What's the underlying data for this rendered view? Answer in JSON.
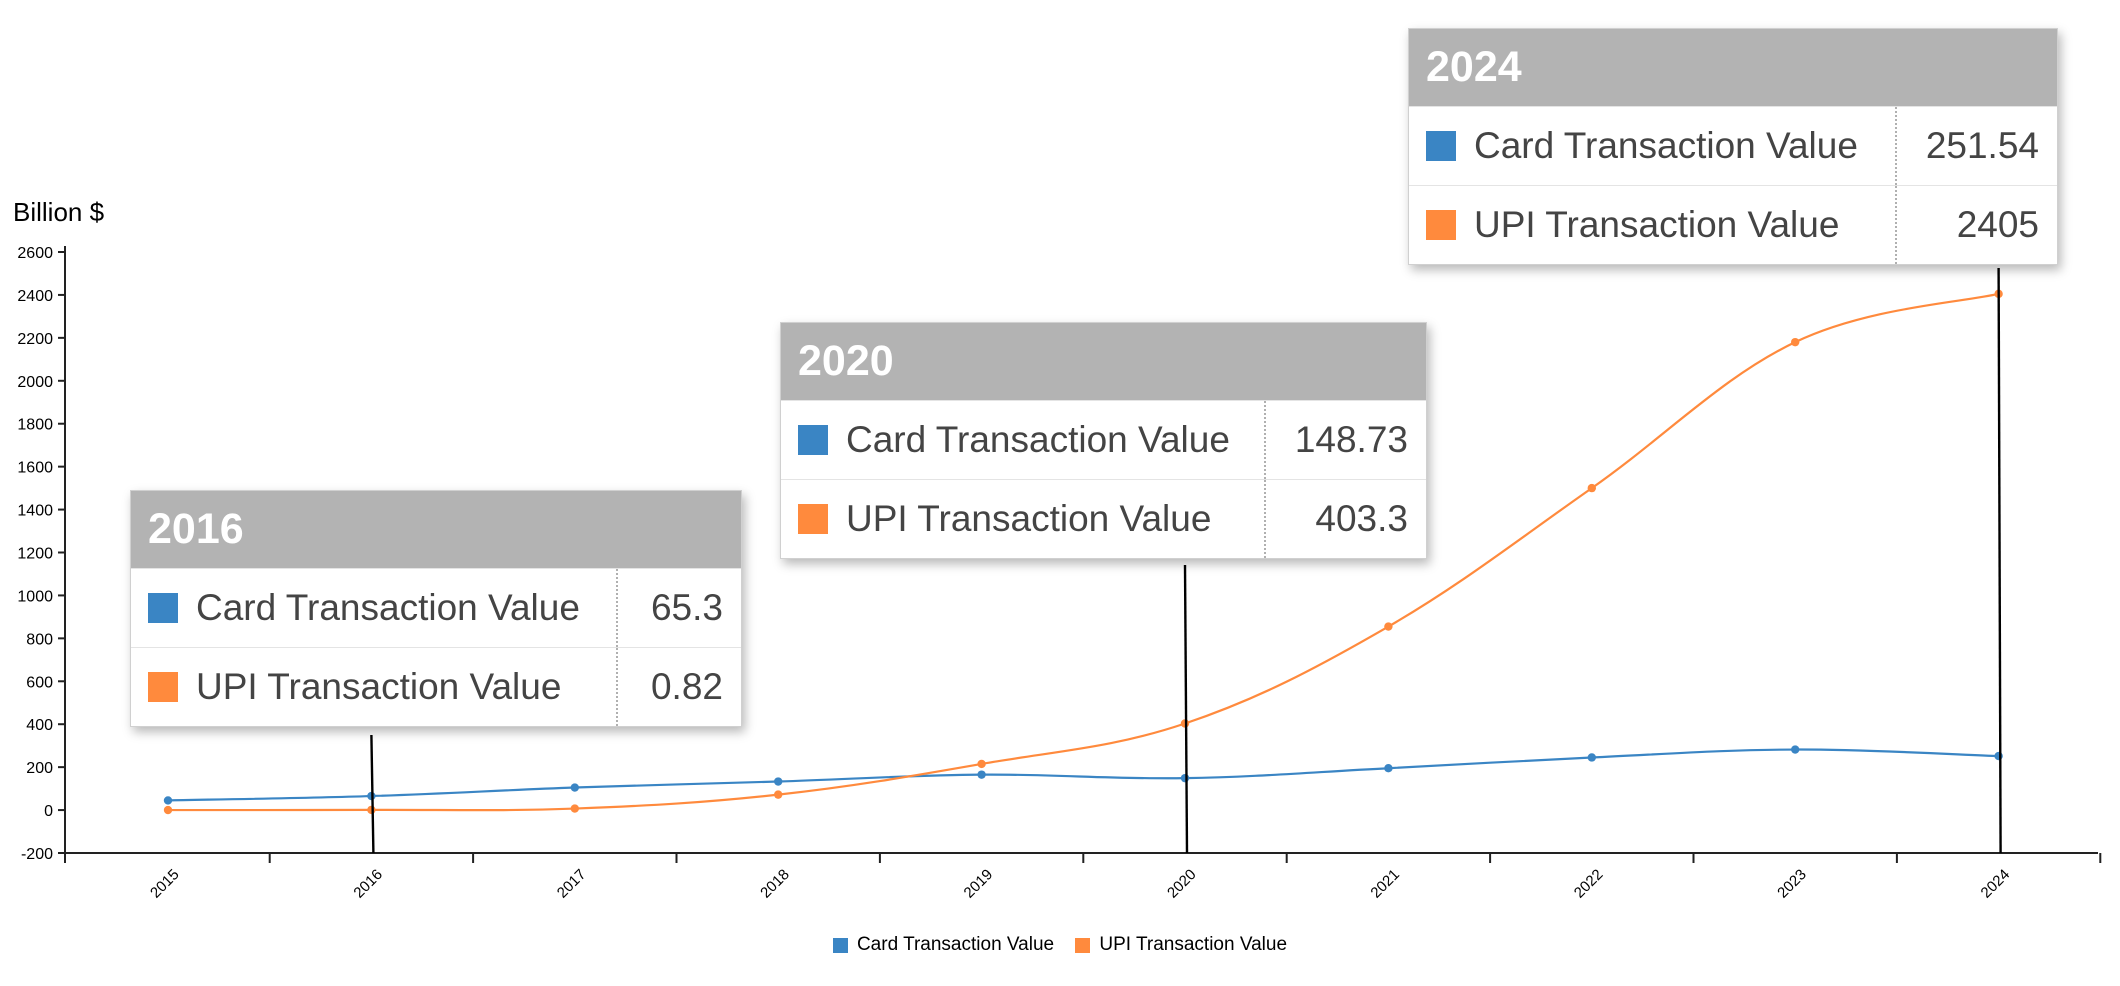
{
  "colors": {
    "card": "#3a85c4",
    "upi": "#ff8a3d",
    "axis": "#222222",
    "marker_line": "#000000"
  },
  "chart_data": {
    "type": "line",
    "title": "",
    "xlabel": "",
    "ylabel": "Billion $",
    "categories": [
      "2015",
      "2016",
      "2017",
      "2018",
      "2019",
      "2020",
      "2021",
      "2022",
      "2023",
      "2024"
    ],
    "ylim": [
      -200,
      2600
    ],
    "yticks": [
      -200,
      0,
      200,
      400,
      600,
      800,
      1000,
      1200,
      1400,
      1600,
      1800,
      2000,
      2200,
      2400,
      2600
    ],
    "grid": false,
    "legend_position": "bottom",
    "series": [
      {
        "name": "Card Transaction Value",
        "color": "#3a85c4",
        "values": [
          45,
          65.3,
          105,
          133,
          165,
          148.73,
          195,
          245,
          282,
          251.54
        ]
      },
      {
        "name": "UPI Transaction Value",
        "color": "#ff8a3d",
        "values": [
          0.1,
          0.82,
          7,
          72,
          215,
          403.3,
          855,
          1500,
          2180,
          2405
        ]
      }
    ],
    "highlighted_years": [
      "2016",
      "2020",
      "2024"
    ]
  },
  "tooltips": [
    {
      "year": "2016",
      "rows": [
        {
          "label": "Card Transaction Value",
          "value": "65.3"
        },
        {
          "label": "UPI Transaction Value",
          "value": "0.82"
        }
      ]
    },
    {
      "year": "2020",
      "rows": [
        {
          "label": "Card Transaction Value",
          "value": "148.73"
        },
        {
          "label": "UPI Transaction Value",
          "value": "403.3"
        }
      ]
    },
    {
      "year": "2024",
      "rows": [
        {
          "label": "Card Transaction Value",
          "value": "251.54"
        },
        {
          "label": "UPI Transaction Value",
          "value": "2405"
        }
      ]
    }
  ],
  "legend": {
    "card_label": "Card Transaction Value",
    "upi_label": "UPI Transaction Value"
  }
}
